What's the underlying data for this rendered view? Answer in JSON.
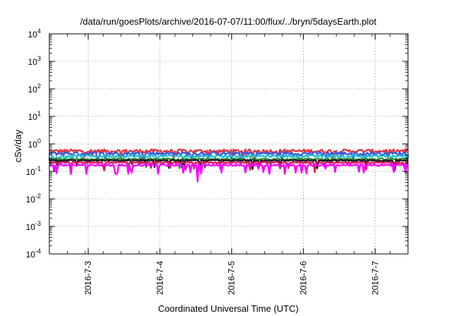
{
  "chart_data": {
    "type": "line",
    "title": "/data/run/goesPlots/archive/2016-07-07/11:00/flux/../bryn/5daysEarth.plot",
    "xlabel": "Coordinated Universal Time (UTC)",
    "ylabel": "cSv/day",
    "yscale": "log",
    "ylim": [
      0.0001,
      10000
    ],
    "y_ticks": [
      {
        "base": "10",
        "exp": "-4",
        "value": 0.0001
      },
      {
        "base": "10",
        "exp": "-3",
        "value": 0.001
      },
      {
        "base": "10",
        "exp": "-2",
        "value": 0.01
      },
      {
        "base": "10",
        "exp": "-1",
        "value": 0.1
      },
      {
        "base": "10",
        "exp": "0",
        "value": 1
      },
      {
        "base": "10",
        "exp": "1",
        "value": 10
      },
      {
        "base": "10",
        "exp": "2",
        "value": 100
      },
      {
        "base": "10",
        "exp": "3",
        "value": 1000
      },
      {
        "base": "10",
        "exp": "4",
        "value": 10000
      }
    ],
    "xlim": [
      "2016-07-02 11:00",
      "2016-07-07 11:00"
    ],
    "x_ticks": [
      {
        "label": "2016-7-3",
        "date": "2016-07-03 00:00"
      },
      {
        "label": "2016-7-4",
        "date": "2016-07-04 00:00"
      },
      {
        "label": "2016-7-5",
        "date": "2016-07-05 00:00"
      },
      {
        "label": "2016-7-6",
        "date": "2016-07-06 00:00"
      },
      {
        "label": "2016-7-7",
        "date": "2016-07-07 00:00"
      }
    ],
    "grid": true,
    "legend": "none",
    "series": [
      {
        "color": "#e8333a",
        "level": 0.55,
        "spread": 0.15
      },
      {
        "color": "#3b5bdb",
        "level": 0.45,
        "spread": 0.15
      },
      {
        "color": "#20c0d0",
        "level": 0.36,
        "spread": 0.09
      },
      {
        "color": "#2e8b3d",
        "level": 0.28,
        "spread": 0.06
      },
      {
        "color": "#1a1a1a",
        "level": 0.25,
        "spread": 0.05
      },
      {
        "color": "#d81b60",
        "level": 0.21,
        "spread": 0.05
      },
      {
        "color": "#ff00ff",
        "level": 0.17,
        "spread": 0.08
      }
    ]
  }
}
